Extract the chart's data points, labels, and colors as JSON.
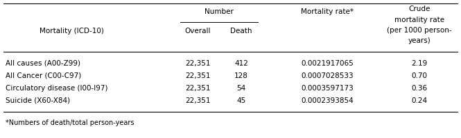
{
  "rows": [
    [
      "All causes (A00-Z99)",
      "22,351",
      "412",
      "0.0021917065",
      "2.19"
    ],
    [
      "All Cancer (C00-C97)",
      "22,351",
      "128",
      "0.0007028533",
      "0.70"
    ],
    [
      "Circulatory disease (I00-I97)",
      "22,351",
      "54",
      "0.0003597173",
      "0.36"
    ],
    [
      "Suicide (X60-X84)",
      "22,351",
      "45",
      "0.0002393854",
      "0.24"
    ]
  ],
  "footnote": "*Numbers of death/total person-years",
  "font_size": 7.5,
  "line_color": "#000000",
  "text_color": "#000000",
  "header_label": "Mortality (ICD-10)",
  "number_label": "Number",
  "overall_label": "Overall",
  "death_label": "Death",
  "mortality_rate_label": "Mortality rate*",
  "crude_line1": "Crude",
  "crude_line2": "mortality rate",
  "crude_line3": "(per 1000 person-",
  "crude_line4": "years)"
}
